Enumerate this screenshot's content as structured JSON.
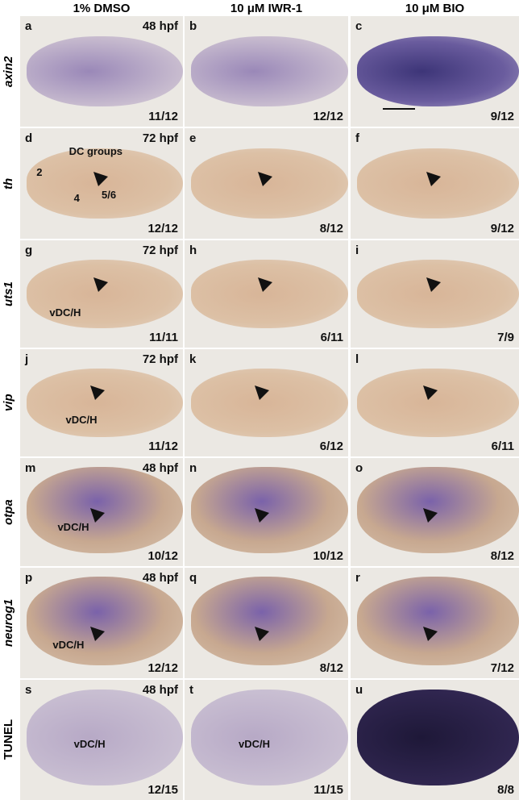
{
  "columns": [
    "1% DMSO",
    "10 μM IWR-1",
    "10 μM BIO"
  ],
  "rows": [
    {
      "label": "axin2",
      "stage": "48 hpf",
      "panels": [
        {
          "letter": "a",
          "count": "11/12"
        },
        {
          "letter": "b",
          "count": "12/12"
        },
        {
          "letter": "c",
          "count": "9/12"
        }
      ]
    },
    {
      "label": "th",
      "stage": "72 hpf",
      "panels": [
        {
          "letter": "d",
          "count": "12/12",
          "notes": [
            "DC groups",
            "2",
            "4",
            "5/6"
          ]
        },
        {
          "letter": "e",
          "count": "8/12"
        },
        {
          "letter": "f",
          "count": "9/12"
        }
      ]
    },
    {
      "label": "uts1",
      "stage": "72 hpf",
      "panels": [
        {
          "letter": "g",
          "count": "11/11",
          "notes": [
            "vDC/H"
          ]
        },
        {
          "letter": "h",
          "count": "6/11"
        },
        {
          "letter": "i",
          "count": "7/9"
        }
      ]
    },
    {
      "label": "vip",
      "stage": "72 hpf",
      "panels": [
        {
          "letter": "j",
          "count": "11/12",
          "notes": [
            "vDC/H"
          ]
        },
        {
          "letter": "k",
          "count": "6/12"
        },
        {
          "letter": "l",
          "count": "6/11"
        }
      ]
    },
    {
      "label": "otpa",
      "stage": "48 hpf",
      "panels": [
        {
          "letter": "m",
          "count": "10/12",
          "notes": [
            "vDC/H"
          ]
        },
        {
          "letter": "n",
          "count": "10/12"
        },
        {
          "letter": "o",
          "count": "8/12"
        }
      ]
    },
    {
      "label": "neurog1",
      "stage": "48 hpf",
      "panels": [
        {
          "letter": "p",
          "count": "12/12",
          "notes": [
            "vDC/H"
          ]
        },
        {
          "letter": "q",
          "count": "8/12"
        },
        {
          "letter": "r",
          "count": "7/12"
        }
      ]
    },
    {
      "label": "TUNEL",
      "stage": "48 hpf",
      "panels": [
        {
          "letter": "s",
          "count": "12/15",
          "notes": [
            "vDC/H"
          ]
        },
        {
          "letter": "t",
          "count": "11/15",
          "notes": [
            "vDC/H"
          ]
        },
        {
          "letter": "u",
          "count": "8/8"
        }
      ]
    }
  ]
}
